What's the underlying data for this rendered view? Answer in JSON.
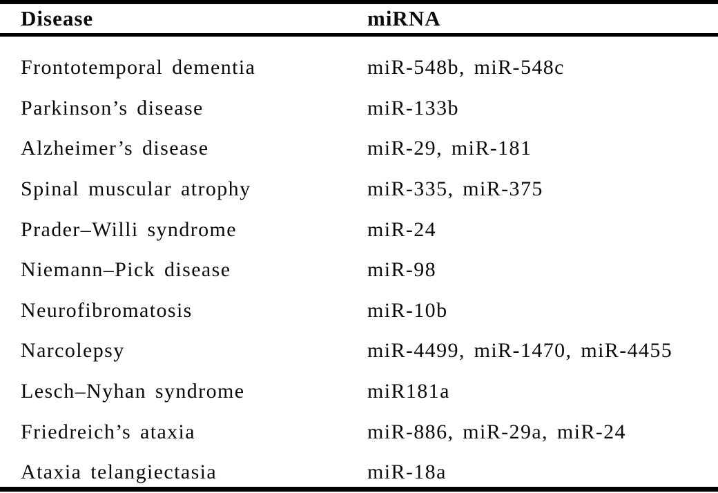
{
  "table": {
    "columns": [
      {
        "key": "disease",
        "label": "Disease"
      },
      {
        "key": "mirna",
        "label": "miRNA"
      }
    ],
    "rows": [
      {
        "disease": "Frontotemporal dementia",
        "mirna": "miR-548b, miR-548c"
      },
      {
        "disease": "Parkinson’s disease",
        "mirna": "miR-133b"
      },
      {
        "disease": "Alzheimer’s disease",
        "mirna": "miR-29, miR-181"
      },
      {
        "disease": "Spinal muscular atrophy",
        "mirna": "miR-335, miR-375"
      },
      {
        "disease": "Prader–Willi syndrome",
        "mirna": "miR-24"
      },
      {
        "disease": "Niemann–Pick disease",
        "mirna": "miR-98"
      },
      {
        "disease": "Neurofibromatosis",
        "mirna": "miR-10b"
      },
      {
        "disease": "Narcolepsy",
        "mirna": "miR-4499, miR-1470, miR-4455"
      },
      {
        "disease": "Lesch–Nyhan syndrome",
        "mirna": "miR181a"
      },
      {
        "disease": "Friedreich’s ataxia",
        "mirna": "miR-886, miR-29a, miR-24"
      },
      {
        "disease": "Ataxia telangiectasia",
        "mirna": "miR-18a"
      }
    ]
  },
  "colors": {
    "background": "#ffffff",
    "text": "#0a0a0a",
    "rule": "#000000"
  }
}
